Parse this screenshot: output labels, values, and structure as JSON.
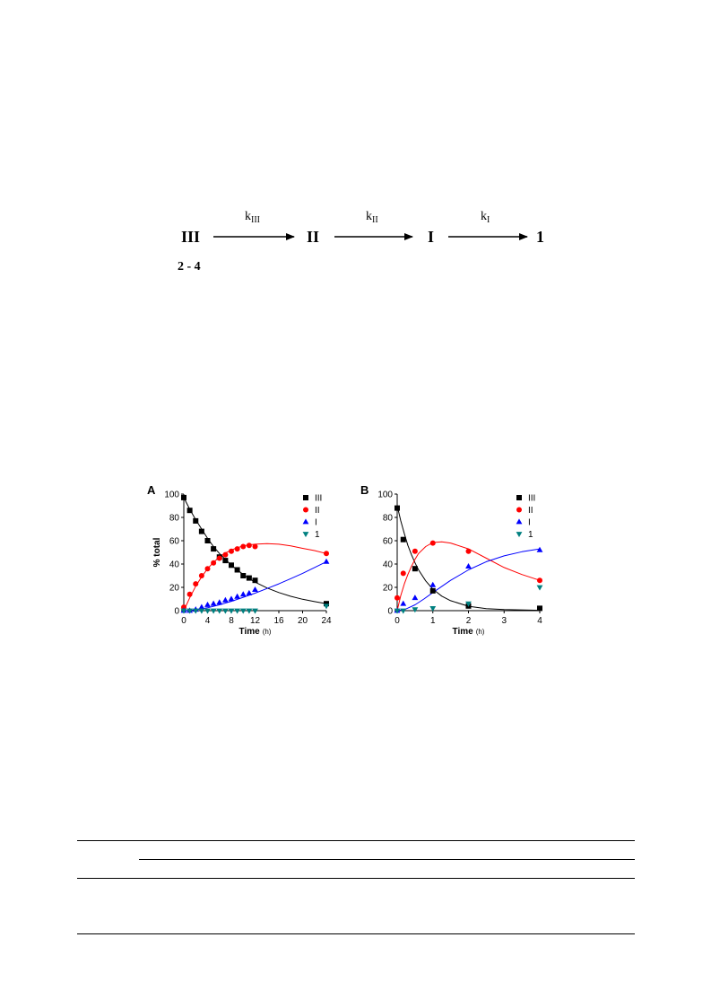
{
  "scheme": {
    "species": [
      "III",
      "II",
      "I",
      "1"
    ],
    "sub_label": "2 - 4",
    "rate_main": "k",
    "rate_subs": [
      "III",
      "II",
      "I"
    ]
  },
  "chart_data": [
    {
      "type": "scatter",
      "panel": "A",
      "xlabel": "Time",
      "xunit": "(h)",
      "ylabel": "% total",
      "xlim": [
        0,
        24
      ],
      "ylim": [
        0,
        100
      ],
      "xticks": [
        0,
        4,
        8,
        12,
        16,
        20,
        24
      ],
      "yticks": [
        0,
        20,
        40,
        60,
        80,
        100
      ],
      "legend_position": "top-right",
      "series": [
        {
          "name": "III",
          "marker": "square",
          "color": "#000000",
          "x": [
            0,
            1,
            2,
            3,
            4,
            5,
            6,
            7,
            8,
            9,
            10,
            11,
            12,
            24
          ],
          "y": [
            97,
            86,
            77,
            68,
            60,
            53,
            46,
            43,
            39,
            35,
            30,
            28,
            26,
            6
          ],
          "fit_x": [
            0,
            1,
            2,
            3,
            4,
            5,
            6,
            7,
            8,
            9,
            10,
            11,
            12,
            14,
            16,
            18,
            20,
            22,
            24
          ],
          "fit_y": [
            97,
            87,
            78,
            70,
            62,
            55,
            49,
            44,
            39,
            35,
            31,
            27.5,
            24.5,
            19.5,
            15.5,
            12.3,
            9.8,
            7.8,
            6
          ]
        },
        {
          "name": "II",
          "marker": "circle",
          "color": "#ff0000",
          "x": [
            0,
            1,
            2,
            3,
            4,
            5,
            6,
            7,
            8,
            9,
            10,
            11,
            12,
            24
          ],
          "y": [
            3,
            14,
            23,
            30,
            36,
            41,
            45,
            48,
            51,
            53,
            55,
            56,
            55,
            49
          ],
          "fit_x": [
            0,
            1,
            2,
            3,
            4,
            5,
            6,
            7,
            8,
            9,
            10,
            11,
            12,
            14,
            16,
            18,
            20,
            22,
            24
          ],
          "fit_y": [
            0,
            11,
            21,
            29,
            36,
            41.5,
            46,
            49.5,
            52,
            54,
            55.5,
            56.5,
            57,
            57.5,
            57,
            55.5,
            53.5,
            51.5,
            49
          ]
        },
        {
          "name": "I",
          "marker": "triangle-up",
          "color": "#0000ff",
          "x": [
            0,
            1,
            2,
            3,
            4,
            5,
            6,
            7,
            8,
            9,
            10,
            11,
            12,
            24
          ],
          "y": [
            0,
            0,
            1,
            3,
            5,
            6,
            7,
            9,
            10,
            12,
            14,
            15,
            18,
            42
          ],
          "fit_x": [
            0,
            2,
            4,
            6,
            8,
            10,
            12,
            14,
            16,
            18,
            20,
            22,
            24
          ],
          "fit_y": [
            0,
            0.8,
            2.5,
            5,
            8,
            11.5,
            15,
            19,
            23,
            27.5,
            32,
            37,
            42
          ]
        },
        {
          "name": "1",
          "marker": "triangle-down",
          "color": "#008080",
          "x": [
            0,
            1,
            2,
            3,
            4,
            5,
            6,
            7,
            8,
            9,
            10,
            11,
            12,
            24
          ],
          "y": [
            0,
            0,
            0,
            0,
            0,
            0,
            0,
            0,
            0,
            0,
            0,
            0,
            0,
            4
          ],
          "fit_x": [],
          "fit_y": []
        }
      ]
    },
    {
      "type": "scatter",
      "panel": "B",
      "xlabel": "Time",
      "xunit": "(h)",
      "ylabel": "",
      "xlim": [
        0,
        4
      ],
      "ylim": [
        0,
        100
      ],
      "xticks": [
        0,
        1,
        2,
        3,
        4
      ],
      "yticks": [
        0,
        20,
        40,
        60,
        80,
        100
      ],
      "legend_position": "top-right",
      "series": [
        {
          "name": "III",
          "marker": "square",
          "color": "#000000",
          "x": [
            0,
            0.17,
            0.5,
            1,
            2,
            4
          ],
          "y": [
            88,
            61,
            36,
            17,
            4,
            2
          ],
          "fit_x": [
            0,
            0.1,
            0.2,
            0.3,
            0.4,
            0.5,
            0.6,
            0.8,
            1,
            1.25,
            1.5,
            2,
            2.5,
            3,
            4
          ],
          "fit_y": [
            90,
            77,
            66,
            56,
            48,
            41,
            35,
            25.5,
            18.5,
            12.5,
            8.5,
            3.8,
            1.8,
            0.9,
            0.3
          ]
        },
        {
          "name": "II",
          "marker": "circle",
          "color": "#ff0000",
          "x": [
            0,
            0.17,
            0.5,
            1,
            2,
            4
          ],
          "y": [
            11,
            32,
            51,
            58,
            51,
            26
          ],
          "fit_x": [
            0,
            0.1,
            0.2,
            0.3,
            0.4,
            0.5,
            0.6,
            0.8,
            1,
            1.25,
            1.5,
            2,
            2.5,
            3,
            3.5,
            4
          ],
          "fit_y": [
            0,
            13,
            23,
            31,
            38,
            44,
            49,
            55,
            58.5,
            59,
            58,
            53,
            45,
            37,
            31,
            26
          ]
        },
        {
          "name": "I",
          "marker": "triangle-up",
          "color": "#0000ff",
          "x": [
            0,
            0.17,
            0.5,
            1,
            2,
            4
          ],
          "y": [
            0,
            6,
            11,
            22,
            38,
            52
          ],
          "fit_x": [
            0,
            0.25,
            0.5,
            0.75,
            1,
            1.5,
            2,
            2.5,
            3,
            3.5,
            4
          ],
          "fit_y": [
            0,
            1.5,
            5,
            10,
            15.5,
            26,
            35,
            42,
            47,
            50.5,
            53
          ]
        },
        {
          "name": "1",
          "marker": "triangle-down",
          "color": "#008080",
          "x": [
            0,
            0.17,
            0.5,
            1,
            2,
            4
          ],
          "y": [
            0,
            0,
            1,
            2,
            6,
            20
          ],
          "fit_x": [],
          "fit_y": []
        }
      ]
    }
  ]
}
